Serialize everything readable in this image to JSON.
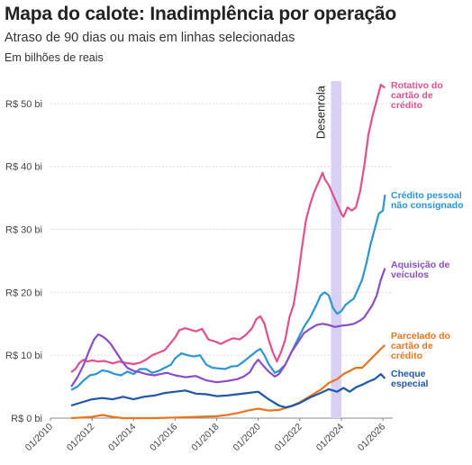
{
  "header": {
    "title": "Mapa do calote: Inadimplência por operação",
    "subtitle": "Atraso de 90 dias ou mais em linhas selecionadas",
    "unit": "Em bilhões de reais"
  },
  "chart_data": {
    "type": "line",
    "ylim": [
      0,
      55
    ],
    "yticks": [
      {
        "value": 0,
        "label": "R$ 0 bi"
      },
      {
        "value": 10,
        "label": "R$ 10 bi"
      },
      {
        "value": 20,
        "label": "R$ 20 bi"
      },
      {
        "value": 30,
        "label": "R$ 30 bi"
      },
      {
        "value": 40,
        "label": "R$ 40 bi"
      },
      {
        "value": 50,
        "label": "R$ 50 bi"
      }
    ],
    "xlim": [
      2010,
      2026.3
    ],
    "xticks": [
      {
        "value": 2010,
        "label": "01/2010"
      },
      {
        "value": 2012,
        "label": "01/2012"
      },
      {
        "value": 2014,
        "label": "01/2014"
      },
      {
        "value": 2016,
        "label": "01/2016"
      },
      {
        "value": 2018,
        "label": "01/2018"
      },
      {
        "value": 2020,
        "label": "01/2020"
      },
      {
        "value": 2022,
        "label": "01/2022"
      },
      {
        "value": 2024,
        "label": "01/2024"
      },
      {
        "value": 2026,
        "label": "01/2026"
      }
    ],
    "grid": "horizontal",
    "annotation": {
      "label": "Desenrola",
      "x_start": 2023.5,
      "x_end": 2024.0,
      "color": "#d8d0f5"
    },
    "series": [
      {
        "name": "Rotativo do cartão de crédito",
        "label_lines": [
          "Rotativo do",
          "cartão de",
          "crédito"
        ],
        "color": "#e0508e",
        "points": [
          [
            2011.0,
            7.3
          ],
          [
            2011.2,
            7.8
          ],
          [
            2011.4,
            8.8
          ],
          [
            2011.6,
            9.3
          ],
          [
            2011.8,
            9.0
          ],
          [
            2012.0,
            9.2
          ],
          [
            2012.3,
            9.0
          ],
          [
            2012.6,
            9.1
          ],
          [
            2013.0,
            8.7
          ],
          [
            2013.3,
            9.0
          ],
          [
            2013.6,
            8.8
          ],
          [
            2014.0,
            8.6
          ],
          [
            2014.3,
            8.8
          ],
          [
            2014.6,
            9.3
          ],
          [
            2014.9,
            10.0
          ],
          [
            2015.2,
            10.4
          ],
          [
            2015.5,
            10.8
          ],
          [
            2015.8,
            12.0
          ],
          [
            2016.0,
            12.8
          ],
          [
            2016.2,
            14.0
          ],
          [
            2016.5,
            14.3
          ],
          [
            2016.8,
            14.0
          ],
          [
            2017.0,
            13.8
          ],
          [
            2017.3,
            14.2
          ],
          [
            2017.6,
            12.5
          ],
          [
            2017.9,
            12.2
          ],
          [
            2018.2,
            11.8
          ],
          [
            2018.5,
            12.3
          ],
          [
            2018.8,
            12.7
          ],
          [
            2019.1,
            12.5
          ],
          [
            2019.4,
            13.2
          ],
          [
            2019.7,
            14.3
          ],
          [
            2019.9,
            15.7
          ],
          [
            2020.1,
            16.2
          ],
          [
            2020.3,
            15.0
          ],
          [
            2020.5,
            12.5
          ],
          [
            2020.7,
            10.5
          ],
          [
            2020.9,
            9.0
          ],
          [
            2021.1,
            10.5
          ],
          [
            2021.3,
            12.5
          ],
          [
            2021.5,
            16.0
          ],
          [
            2021.7,
            18.0
          ],
          [
            2021.9,
            22.0
          ],
          [
            2022.1,
            27.0
          ],
          [
            2022.3,
            31.5
          ],
          [
            2022.5,
            34.0
          ],
          [
            2022.7,
            36.0
          ],
          [
            2022.9,
            37.5
          ],
          [
            2023.1,
            39.0
          ],
          [
            2023.2,
            38.0
          ],
          [
            2023.4,
            37.0
          ],
          [
            2023.6,
            35.5
          ],
          [
            2023.8,
            34.0
          ],
          [
            2024.0,
            32.5
          ],
          [
            2024.1,
            32.0
          ],
          [
            2024.3,
            33.5
          ],
          [
            2024.5,
            33.0
          ],
          [
            2024.7,
            33.5
          ],
          [
            2024.9,
            36.0
          ],
          [
            2025.1,
            40.0
          ],
          [
            2025.3,
            45.0
          ],
          [
            2025.5,
            48.0
          ],
          [
            2025.7,
            50.5
          ],
          [
            2025.9,
            53.0
          ],
          [
            2026.1,
            52.5
          ]
        ]
      },
      {
        "name": "Crédito pessoal não consignado",
        "label_lines": [
          "Crédito pessoal",
          "não consignado"
        ],
        "color": "#2b95d3",
        "points": [
          [
            2011.0,
            4.5
          ],
          [
            2011.3,
            5.0
          ],
          [
            2011.6,
            6.0
          ],
          [
            2011.9,
            6.8
          ],
          [
            2012.2,
            7.0
          ],
          [
            2012.5,
            7.6
          ],
          [
            2012.8,
            7.4
          ],
          [
            2013.1,
            7.0
          ],
          [
            2013.4,
            6.8
          ],
          [
            2013.7,
            7.4
          ],
          [
            2014.0,
            7.0
          ],
          [
            2014.3,
            7.8
          ],
          [
            2014.6,
            7.8
          ],
          [
            2014.9,
            7.2
          ],
          [
            2015.2,
            7.5
          ],
          [
            2015.5,
            8.0
          ],
          [
            2015.8,
            8.5
          ],
          [
            2016.0,
            9.5
          ],
          [
            2016.3,
            10.3
          ],
          [
            2016.6,
            10.0
          ],
          [
            2016.9,
            9.8
          ],
          [
            2017.2,
            10.0
          ],
          [
            2017.5,
            8.5
          ],
          [
            2017.8,
            8.0
          ],
          [
            2018.1,
            7.9
          ],
          [
            2018.4,
            7.8
          ],
          [
            2018.7,
            8.2
          ],
          [
            2019.0,
            8.3
          ],
          [
            2019.3,
            9.0
          ],
          [
            2019.6,
            9.8
          ],
          [
            2019.9,
            10.6
          ],
          [
            2020.1,
            11.0
          ],
          [
            2020.3,
            10.0
          ],
          [
            2020.5,
            8.6
          ],
          [
            2020.8,
            7.2
          ],
          [
            2021.0,
            7.5
          ],
          [
            2021.3,
            8.5
          ],
          [
            2021.6,
            10.5
          ],
          [
            2021.9,
            12.5
          ],
          [
            2022.2,
            14.5
          ],
          [
            2022.5,
            16.0
          ],
          [
            2022.8,
            18.0
          ],
          [
            2023.0,
            19.5
          ],
          [
            2023.2,
            20.0
          ],
          [
            2023.4,
            19.5
          ],
          [
            2023.6,
            17.5
          ],
          [
            2023.8,
            16.6
          ],
          [
            2024.0,
            17.0
          ],
          [
            2024.2,
            18.0
          ],
          [
            2024.4,
            18.5
          ],
          [
            2024.6,
            19.0
          ],
          [
            2024.8,
            20.5
          ],
          [
            2025.0,
            22.0
          ],
          [
            2025.2,
            24.5
          ],
          [
            2025.4,
            27.5
          ],
          [
            2025.6,
            30.0
          ],
          [
            2025.8,
            32.5
          ],
          [
            2026.0,
            33.0
          ],
          [
            2026.1,
            35.5
          ]
        ]
      },
      {
        "name": "Aquisição de veículos",
        "label_lines": [
          "Aquisição de",
          "veículos"
        ],
        "color": "#8b4cc8",
        "points": [
          [
            2011.0,
            5.0
          ],
          [
            2011.3,
            6.5
          ],
          [
            2011.6,
            8.5
          ],
          [
            2011.9,
            11.0
          ],
          [
            2012.1,
            12.5
          ],
          [
            2012.3,
            13.3
          ],
          [
            2012.5,
            13.0
          ],
          [
            2012.7,
            12.5
          ],
          [
            2012.9,
            11.8
          ],
          [
            2013.1,
            10.8
          ],
          [
            2013.3,
            9.8
          ],
          [
            2013.5,
            8.8
          ],
          [
            2013.7,
            8.0
          ],
          [
            2014.0,
            7.5
          ],
          [
            2014.3,
            7.3
          ],
          [
            2014.6,
            7.0
          ],
          [
            2015.0,
            6.8
          ],
          [
            2015.3,
            7.0
          ],
          [
            2015.6,
            7.2
          ],
          [
            2016.0,
            6.8
          ],
          [
            2016.5,
            6.5
          ],
          [
            2017.0,
            6.7
          ],
          [
            2017.5,
            6.0
          ],
          [
            2018.0,
            5.7
          ],
          [
            2018.5,
            5.9
          ],
          [
            2019.0,
            6.2
          ],
          [
            2019.3,
            6.6
          ],
          [
            2019.6,
            7.3
          ],
          [
            2019.8,
            8.5
          ],
          [
            2020.0,
            9.3
          ],
          [
            2020.2,
            8.5
          ],
          [
            2020.5,
            7.4
          ],
          [
            2020.8,
            6.6
          ],
          [
            2021.0,
            7.0
          ],
          [
            2021.3,
            8.5
          ],
          [
            2021.6,
            10.5
          ],
          [
            2021.9,
            12.0
          ],
          [
            2022.2,
            13.5
          ],
          [
            2022.5,
            14.2
          ],
          [
            2022.8,
            14.8
          ],
          [
            2023.1,
            15.0
          ],
          [
            2023.4,
            14.8
          ],
          [
            2023.7,
            14.5
          ],
          [
            2024.0,
            14.7
          ],
          [
            2024.3,
            14.8
          ],
          [
            2024.6,
            15.0
          ],
          [
            2024.9,
            15.5
          ],
          [
            2025.1,
            16.0
          ],
          [
            2025.3,
            17.0
          ],
          [
            2025.5,
            18.0
          ],
          [
            2025.7,
            19.5
          ],
          [
            2025.9,
            22.0
          ],
          [
            2026.1,
            23.8
          ]
        ]
      },
      {
        "name": "Parcelado do cartão de crédito",
        "label_lines": [
          "Parcelado do",
          "cartão de",
          "crédito"
        ],
        "color": "#e8741e",
        "points": [
          [
            2011.0,
            0.0
          ],
          [
            2011.5,
            0.1
          ],
          [
            2012.0,
            0.2
          ],
          [
            2012.5,
            0.5
          ],
          [
            2013.0,
            0.2
          ],
          [
            2013.5,
            0.0
          ],
          [
            2014.0,
            0.0
          ],
          [
            2015.0,
            0.0
          ],
          [
            2016.0,
            0.1
          ],
          [
            2017.0,
            0.2
          ],
          [
            2018.0,
            0.3
          ],
          [
            2018.5,
            0.5
          ],
          [
            2019.0,
            0.8
          ],
          [
            2019.5,
            1.2
          ],
          [
            2020.0,
            1.5
          ],
          [
            2020.5,
            1.2
          ],
          [
            2021.0,
            1.3
          ],
          [
            2021.5,
            1.8
          ],
          [
            2022.0,
            2.5
          ],
          [
            2022.5,
            3.5
          ],
          [
            2023.0,
            4.5
          ],
          [
            2023.4,
            5.6
          ],
          [
            2023.8,
            6.2
          ],
          [
            2024.1,
            7.0
          ],
          [
            2024.4,
            7.5
          ],
          [
            2024.7,
            8.0
          ],
          [
            2025.0,
            8.0
          ],
          [
            2025.3,
            9.0
          ],
          [
            2025.6,
            10.0
          ],
          [
            2025.9,
            11.0
          ],
          [
            2026.1,
            11.6
          ]
        ]
      },
      {
        "name": "Cheque especial",
        "label_lines": [
          "Cheque",
          "especial"
        ],
        "color": "#1f58a6",
        "points": [
          [
            2011.0,
            2.0
          ],
          [
            2011.5,
            2.5
          ],
          [
            2012.0,
            3.0
          ],
          [
            2012.5,
            3.2
          ],
          [
            2013.0,
            3.0
          ],
          [
            2013.5,
            3.4
          ],
          [
            2014.0,
            3.0
          ],
          [
            2014.5,
            3.4
          ],
          [
            2015.0,
            3.6
          ],
          [
            2015.5,
            4.0
          ],
          [
            2016.0,
            4.2
          ],
          [
            2016.5,
            4.4
          ],
          [
            2017.0,
            3.9
          ],
          [
            2017.5,
            3.8
          ],
          [
            2018.0,
            3.5
          ],
          [
            2018.5,
            3.6
          ],
          [
            2019.0,
            3.8
          ],
          [
            2019.5,
            4.0
          ],
          [
            2020.0,
            4.2
          ],
          [
            2020.5,
            3.0
          ],
          [
            2021.0,
            2.0
          ],
          [
            2021.3,
            1.7
          ],
          [
            2021.6,
            1.9
          ],
          [
            2022.0,
            2.4
          ],
          [
            2022.5,
            3.3
          ],
          [
            2023.0,
            4.0
          ],
          [
            2023.4,
            4.6
          ],
          [
            2023.8,
            4.2
          ],
          [
            2024.1,
            4.8
          ],
          [
            2024.4,
            4.2
          ],
          [
            2024.7,
            4.9
          ],
          [
            2025.0,
            5.3
          ],
          [
            2025.3,
            5.8
          ],
          [
            2025.6,
            6.2
          ],
          [
            2025.9,
            7.0
          ],
          [
            2026.1,
            6.3
          ]
        ]
      }
    ]
  }
}
